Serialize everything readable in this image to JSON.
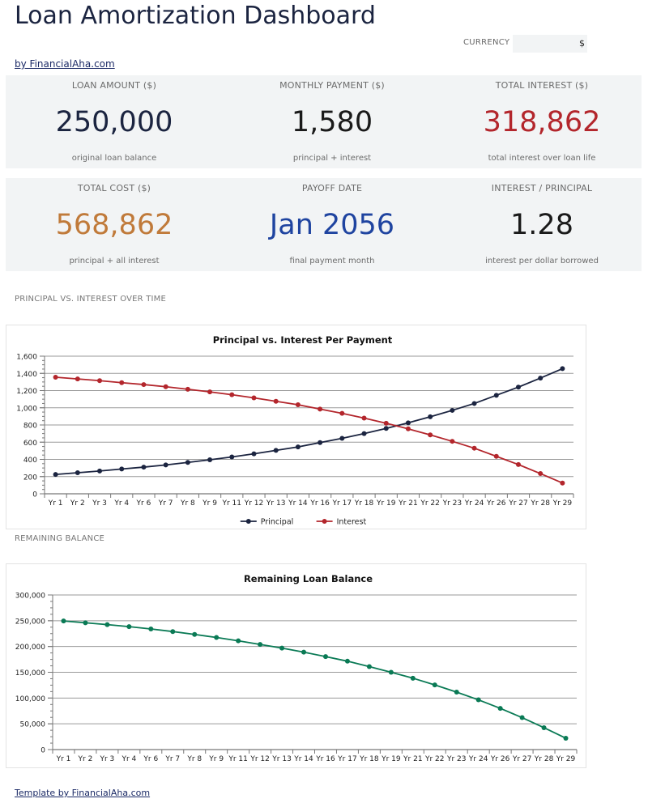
{
  "header": {
    "title": "Loan Amortization Dashboard",
    "currency_label": "CURRENCY",
    "currency_value": "$",
    "byline": "by FinancialAha.com"
  },
  "kpis": [
    {
      "label": "LOAN AMOUNT ($)",
      "value": "250,000",
      "sub": "original loan balance",
      "color": "#1b2440"
    },
    {
      "label": "MONTHLY PAYMENT ($)",
      "value": "1,580",
      "sub": "principal + interest",
      "color": "#1a1a1a"
    },
    {
      "label": "TOTAL INTEREST ($)",
      "value": "318,862",
      "sub": "total interest over loan life",
      "color": "#b3262c"
    },
    {
      "label": "TOTAL COST ($)",
      "value": "568,862",
      "sub": "principal + all interest",
      "color": "#c07a3a"
    },
    {
      "label": "PAYOFF DATE",
      "value": "Jan 2056",
      "sub": "final payment month",
      "color": "#1f44a0"
    },
    {
      "label": "INTEREST / PRINCIPAL",
      "value": "1.28",
      "sub": "interest per dollar borrowed",
      "color": "#1a1a1a"
    }
  ],
  "sections": {
    "chart1_label": "PRINCIPAL VS. INTEREST OVER TIME",
    "chart2_label": "REMAINING BALANCE"
  },
  "footer": {
    "link": "Template by FinancialAha.com"
  },
  "chart_data": [
    {
      "type": "line",
      "title": "Principal vs. Interest Per Payment",
      "categories": [
        "Yr 1",
        "Yr 2",
        "Yr 3",
        "Yr 4",
        "Yr 6",
        "Yr 7",
        "Yr 8",
        "Yr 9",
        "Yr 11",
        "Yr 12",
        "Yr 13",
        "Yr 14",
        "Yr 16",
        "Yr 17",
        "Yr 18",
        "Yr 19",
        "Yr 21",
        "Yr 22",
        "Yr 23",
        "Yr 24",
        "Yr 26",
        "Yr 27",
        "Yr 28",
        "Yr 29"
      ],
      "ylim": [
        0,
        1600
      ],
      "yticks": [
        0,
        200,
        400,
        600,
        800,
        1000,
        1200,
        1400,
        1600
      ],
      "ytick_labels": [
        "0",
        "200",
        "400",
        "600",
        "800",
        "1,000",
        "1,200",
        "1,400",
        "1,600"
      ],
      "grid": true,
      "legend": "bottom",
      "series": [
        {
          "name": "Principal",
          "color": "#1b2440",
          "values": [
            225,
            245,
            265,
            288,
            310,
            335,
            365,
            395,
            428,
            465,
            505,
            545,
            595,
            645,
            700,
            760,
            825,
            895,
            970,
            1050,
            1145,
            1240,
            1345,
            1455
          ]
        },
        {
          "name": "Interest",
          "color": "#b3262c",
          "values": [
            1355,
            1335,
            1315,
            1292,
            1270,
            1245,
            1215,
            1185,
            1152,
            1115,
            1075,
            1035,
            985,
            935,
            880,
            820,
            755,
            685,
            610,
            530,
            435,
            340,
            235,
            125
          ]
        }
      ]
    },
    {
      "type": "line",
      "title": "Remaining Loan Balance",
      "categories": [
        "Yr 1",
        "Yr 2",
        "Yr 3",
        "Yr 4",
        "Yr 6",
        "Yr 7",
        "Yr 8",
        "Yr 9",
        "Yr 11",
        "Yr 12",
        "Yr 13",
        "Yr 14",
        "Yr 16",
        "Yr 17",
        "Yr 18",
        "Yr 19",
        "Yr 21",
        "Yr 22",
        "Yr 23",
        "Yr 24",
        "Yr 26",
        "Yr 27",
        "Yr 28",
        "Yr 29"
      ],
      "ylim": [
        0,
        300000
      ],
      "yticks": [
        0,
        50000,
        100000,
        150000,
        200000,
        250000,
        300000
      ],
      "ytick_labels": [
        "0",
        "50,000",
        "100,000",
        "150,000",
        "200,000",
        "250,000",
        "300,000"
      ],
      "grid": true,
      "legend": "none",
      "series": [
        {
          "color": "#0a7a55",
          "values": [
            249500,
            246000,
            242500,
            238500,
            234000,
            229000,
            223500,
            217500,
            211000,
            204000,
            197000,
            189000,
            180500,
            171500,
            161000,
            150000,
            138500,
            125500,
            111500,
            96500,
            80000,
            62000,
            42500,
            22000
          ]
        }
      ]
    }
  ]
}
